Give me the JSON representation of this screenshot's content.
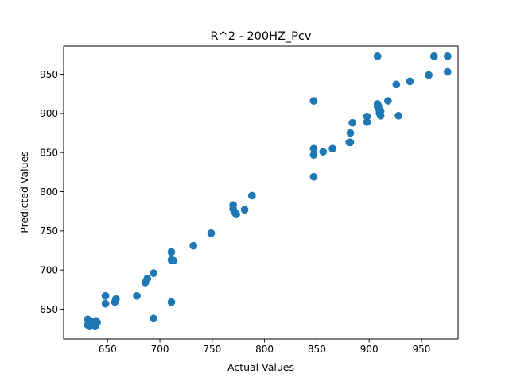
{
  "chart_data": {
    "type": "scatter",
    "title": "R^2 - 200HZ_Pcv",
    "xlabel": "Actual Values",
    "ylabel": "Predicted Values",
    "xlim": [
      608,
      985
    ],
    "ylim": [
      612,
      986
    ],
    "x_ticks": [
      650,
      700,
      750,
      800,
      850,
      900,
      950
    ],
    "y_ticks": [
      650,
      700,
      750,
      800,
      850,
      900,
      950
    ],
    "grid": false,
    "legend": "none",
    "marker_color": "#1f77b4",
    "series": [
      {
        "points": [
          [
            631,
            637
          ],
          [
            631,
            630
          ],
          [
            633,
            628
          ],
          [
            635,
            631
          ],
          [
            636,
            634
          ],
          [
            638,
            628
          ],
          [
            639,
            635
          ],
          [
            640,
            633
          ],
          [
            648,
            667
          ],
          [
            648,
            657
          ],
          [
            657,
            659
          ],
          [
            658,
            663
          ],
          [
            678,
            667
          ],
          [
            686,
            684
          ],
          [
            688,
            689
          ],
          [
            694,
            696
          ],
          [
            694,
            638
          ],
          [
            711,
            723
          ],
          [
            711,
            713
          ],
          [
            711,
            659
          ],
          [
            713,
            712
          ],
          [
            732,
            731
          ],
          [
            749,
            747
          ],
          [
            770,
            783
          ],
          [
            770,
            778
          ],
          [
            772,
            773
          ],
          [
            773,
            771
          ],
          [
            781,
            777
          ],
          [
            788,
            795
          ],
          [
            847,
            916
          ],
          [
            847,
            855
          ],
          [
            847,
            847
          ],
          [
            847,
            819
          ],
          [
            856,
            851
          ],
          [
            865,
            855
          ],
          [
            881,
            863
          ],
          [
            882,
            863
          ],
          [
            882,
            875
          ],
          [
            884,
            888
          ],
          [
            898,
            896
          ],
          [
            898,
            889
          ],
          [
            908,
            973
          ],
          [
            908,
            912
          ],
          [
            908,
            909
          ],
          [
            909,
            906
          ],
          [
            909,
            909
          ],
          [
            910,
            900
          ],
          [
            911,
            897
          ],
          [
            911,
            903
          ],
          [
            918,
            916
          ],
          [
            926,
            937
          ],
          [
            928,
            897
          ],
          [
            939,
            941
          ],
          [
            957,
            949
          ],
          [
            962,
            973
          ],
          [
            975,
            973
          ],
          [
            975,
            953
          ]
        ]
      }
    ]
  }
}
